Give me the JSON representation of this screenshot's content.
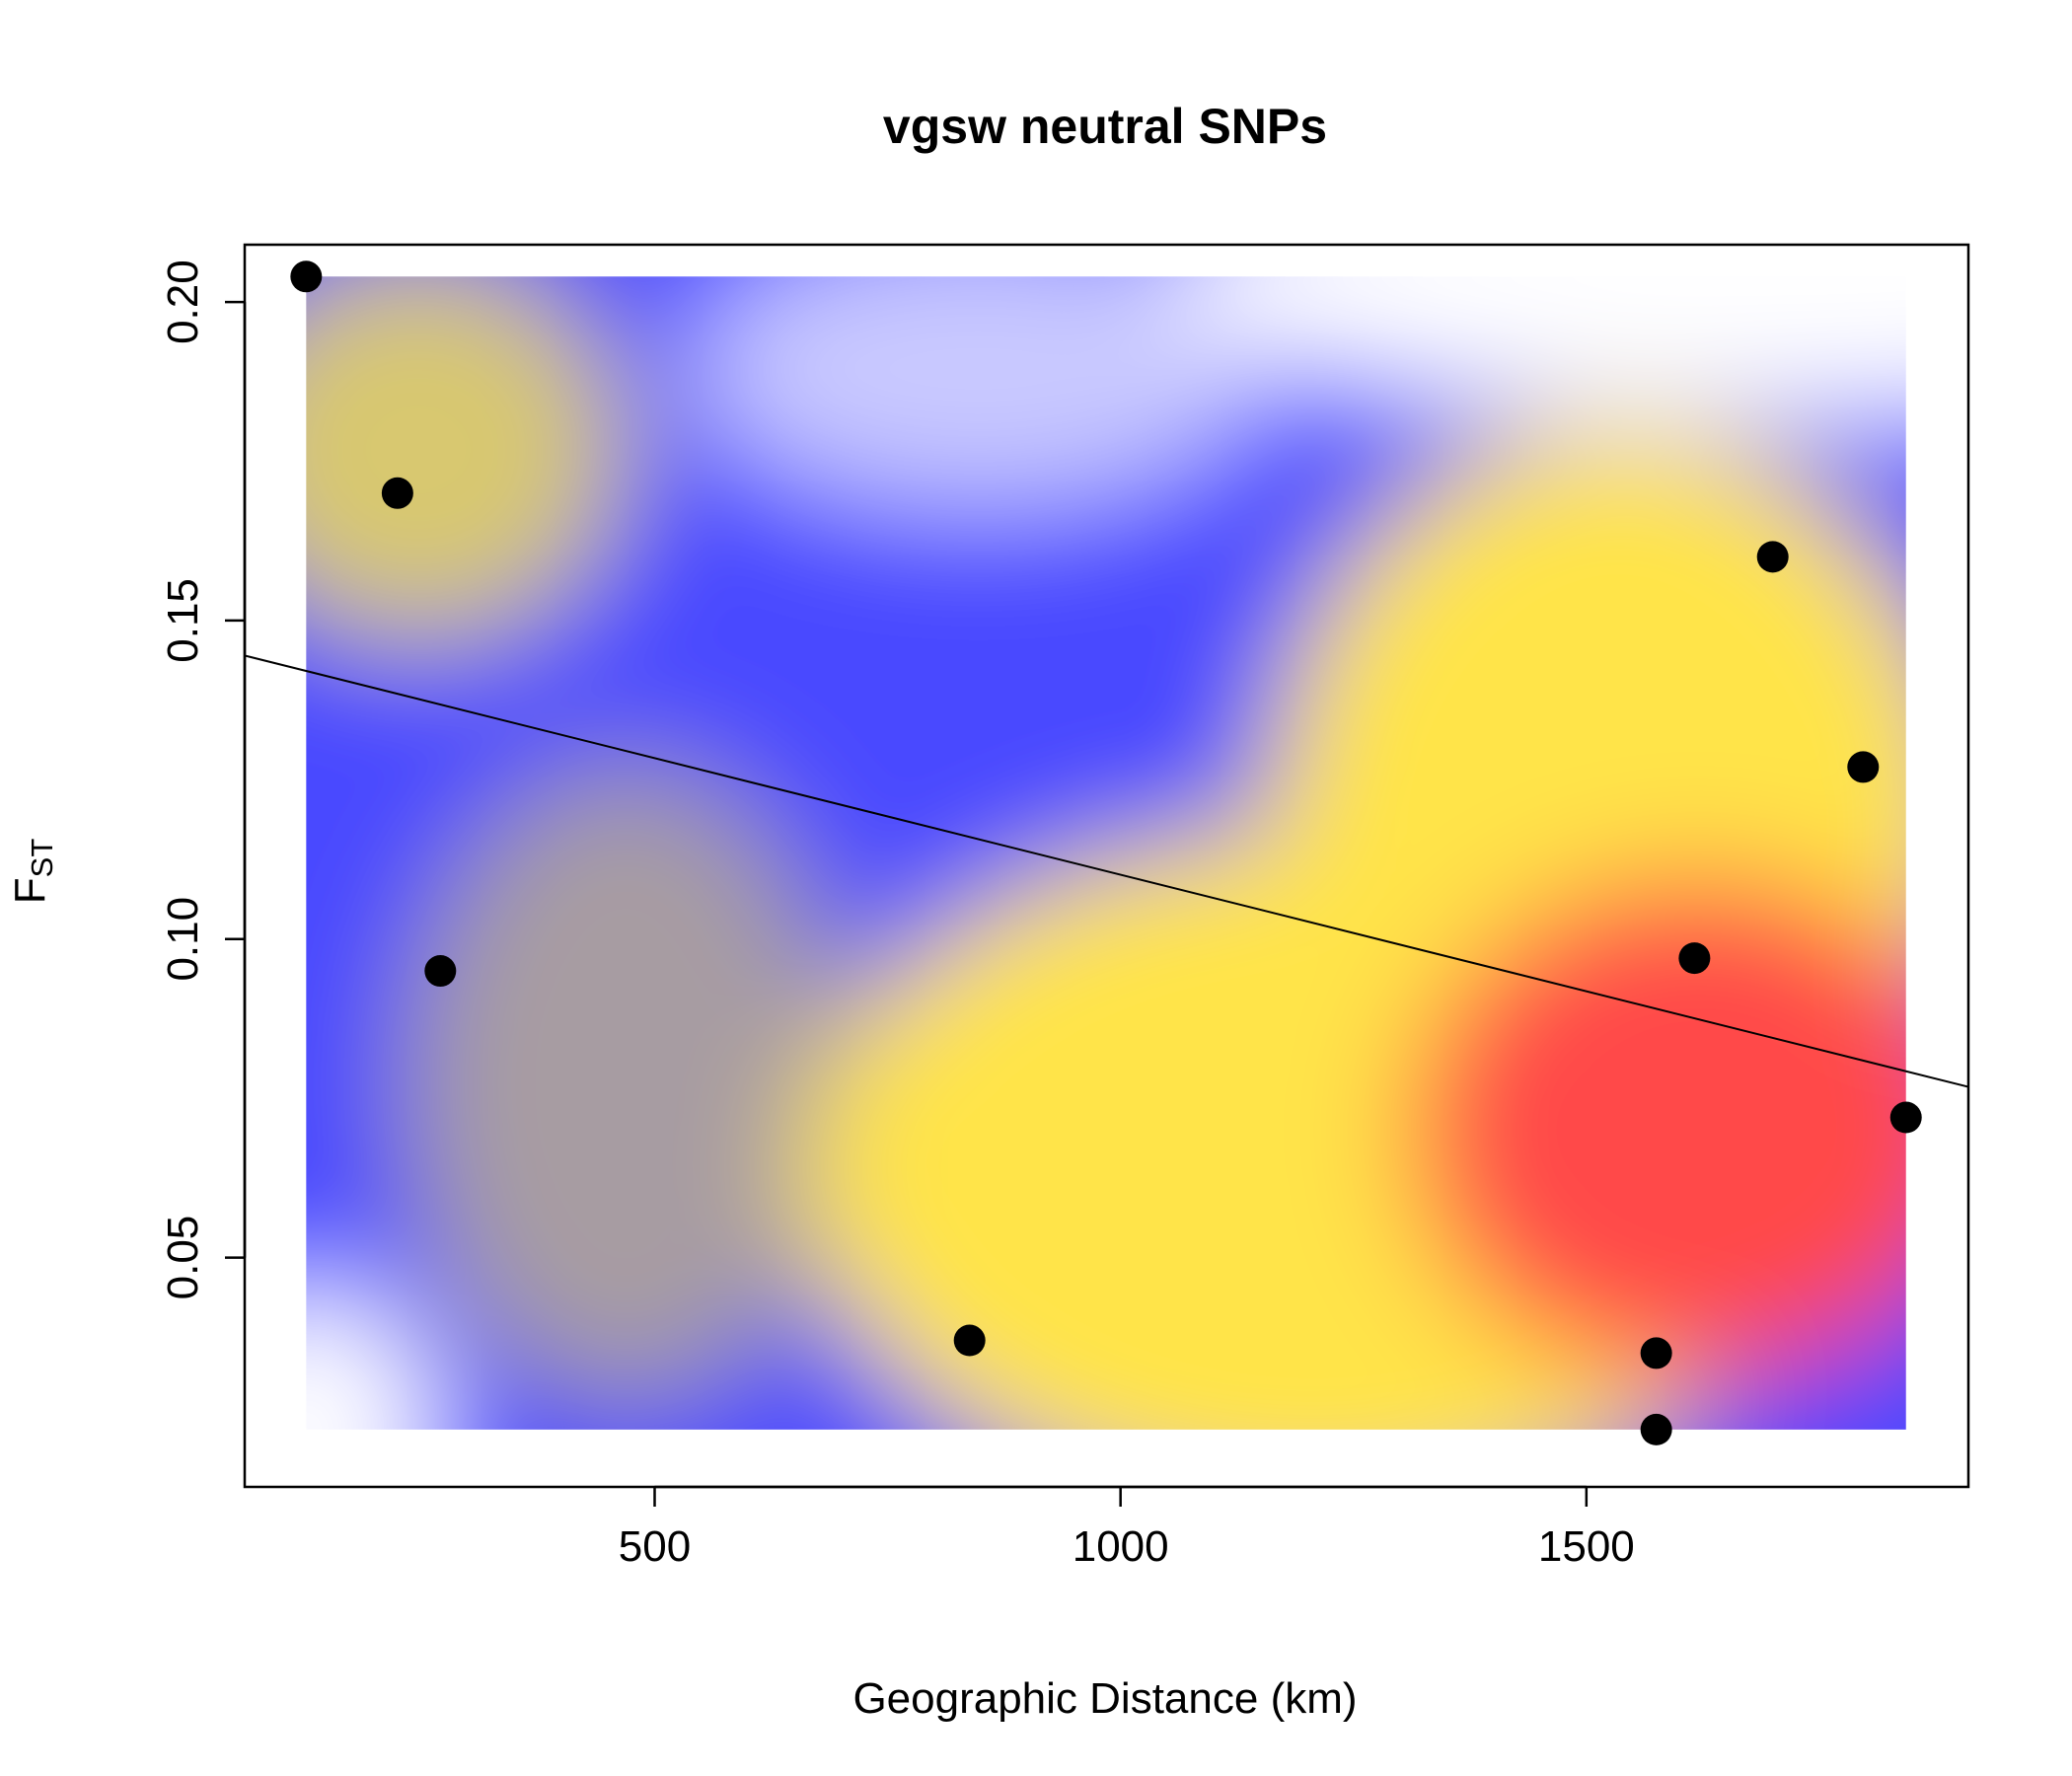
{
  "chart_data": {
    "type": "scatter",
    "title": "vgsw neutral SNPs",
    "xlabel": "Geographic Distance (km)",
    "ylabel": {
      "main": "F",
      "sub": "ST"
    },
    "xlim": [
      60,
      1910
    ],
    "ylim": [
      0.014,
      0.209
    ],
    "x_ticks": [
      {
        "value": 500,
        "label": "500"
      },
      {
        "value": 1000,
        "label": "1000"
      },
      {
        "value": 1500,
        "label": "1500"
      }
    ],
    "y_ticks": [
      {
        "value": 0.05,
        "label": "0.05"
      },
      {
        "value": 0.1,
        "label": "0.10"
      },
      {
        "value": 0.15,
        "label": "0.15"
      },
      {
        "value": 0.2,
        "label": "0.20"
      }
    ],
    "points": [
      {
        "x": 126,
        "y": 0.204
      },
      {
        "x": 224,
        "y": 0.17
      },
      {
        "x": 270,
        "y": 0.095
      },
      {
        "x": 838,
        "y": 0.037
      },
      {
        "x": 1575,
        "y": 0.035
      },
      {
        "x": 1575,
        "y": 0.023
      },
      {
        "x": 1616,
        "y": 0.097
      },
      {
        "x": 1700,
        "y": 0.16
      },
      {
        "x": 1797,
        "y": 0.127
      },
      {
        "x": 1843,
        "y": 0.072
      }
    ],
    "regression_line": {
      "intercept": 0.1467,
      "slope": -3.66e-05
    },
    "density_background": {
      "x_range": [
        126,
        1843
      ],
      "y_range": [
        0.023,
        0.204
      ],
      "colors": [
        "#ffffff",
        "#4a4aff",
        "#d8c870",
        "#ffe44a",
        "#ff4a4a"
      ]
    },
    "grid": false,
    "legend": "none"
  }
}
